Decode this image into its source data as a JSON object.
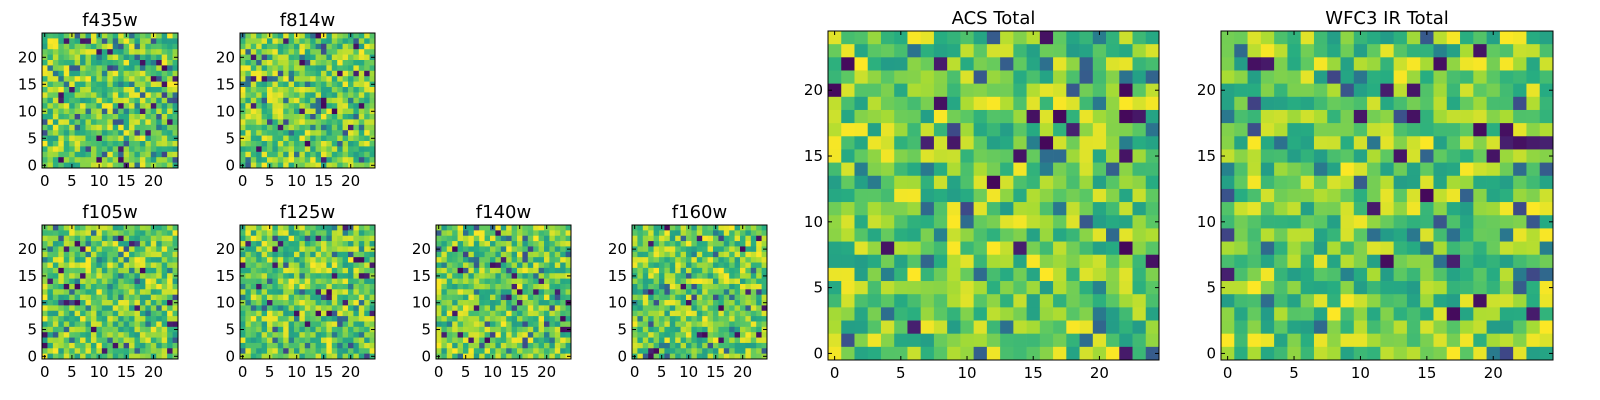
{
  "figure": {
    "background": "#ffffff"
  },
  "chart_data": [
    {
      "type": "heatmap",
      "title": "f435w",
      "grid_size": 25,
      "xlim": [
        0,
        24
      ],
      "ylim": [
        0,
        24
      ],
      "x_ticks": [
        0,
        5,
        10,
        15,
        20
      ],
      "y_ticks": [
        0,
        5,
        10,
        15,
        20
      ],
      "colormap": "viridis",
      "grid": false
    },
    {
      "type": "heatmap",
      "title": "f814w",
      "grid_size": 25,
      "xlim": [
        0,
        24
      ],
      "ylim": [
        0,
        24
      ],
      "x_ticks": [
        0,
        5,
        10,
        15,
        20
      ],
      "y_ticks": [
        0,
        5,
        10,
        15,
        20
      ],
      "colormap": "viridis",
      "grid": false
    },
    {
      "type": "heatmap",
      "title": "f105w",
      "grid_size": 25,
      "xlim": [
        0,
        24
      ],
      "ylim": [
        0,
        24
      ],
      "x_ticks": [
        0,
        5,
        10,
        15,
        20
      ],
      "y_ticks": [
        0,
        5,
        10,
        15,
        20
      ],
      "colormap": "viridis",
      "grid": false
    },
    {
      "type": "heatmap",
      "title": "f125w",
      "grid_size": 25,
      "xlim": [
        0,
        24
      ],
      "ylim": [
        0,
        24
      ],
      "x_ticks": [
        0,
        5,
        10,
        15,
        20
      ],
      "y_ticks": [
        0,
        5,
        10,
        15,
        20
      ],
      "colormap": "viridis",
      "grid": false
    },
    {
      "type": "heatmap",
      "title": "f140w",
      "grid_size": 25,
      "xlim": [
        0,
        24
      ],
      "ylim": [
        0,
        24
      ],
      "x_ticks": [
        0,
        5,
        10,
        15,
        20
      ],
      "y_ticks": [
        0,
        5,
        10,
        15,
        20
      ],
      "colormap": "viridis",
      "grid": false
    },
    {
      "type": "heatmap",
      "title": "f160w",
      "grid_size": 25,
      "xlim": [
        0,
        24
      ],
      "ylim": [
        0,
        24
      ],
      "x_ticks": [
        0,
        5,
        10,
        15,
        20
      ],
      "y_ticks": [
        0,
        5,
        10,
        15,
        20
      ],
      "colormap": "viridis",
      "grid": false
    },
    {
      "type": "heatmap",
      "title": "ACS Total",
      "grid_size": 25,
      "xlim": [
        0,
        24
      ],
      "ylim": [
        0,
        24
      ],
      "x_ticks": [
        0,
        5,
        10,
        15,
        20
      ],
      "y_ticks": [
        0,
        5,
        10,
        15,
        20
      ],
      "colormap": "viridis",
      "grid": false
    },
    {
      "type": "heatmap",
      "title": "WFC3 IR Total",
      "grid_size": 25,
      "xlim": [
        0,
        24
      ],
      "ylim": [
        0,
        24
      ],
      "x_ticks": [
        0,
        5,
        10,
        15,
        20
      ],
      "y_ticks": [
        0,
        5,
        10,
        15,
        20
      ],
      "colormap": "viridis",
      "grid": false
    }
  ]
}
